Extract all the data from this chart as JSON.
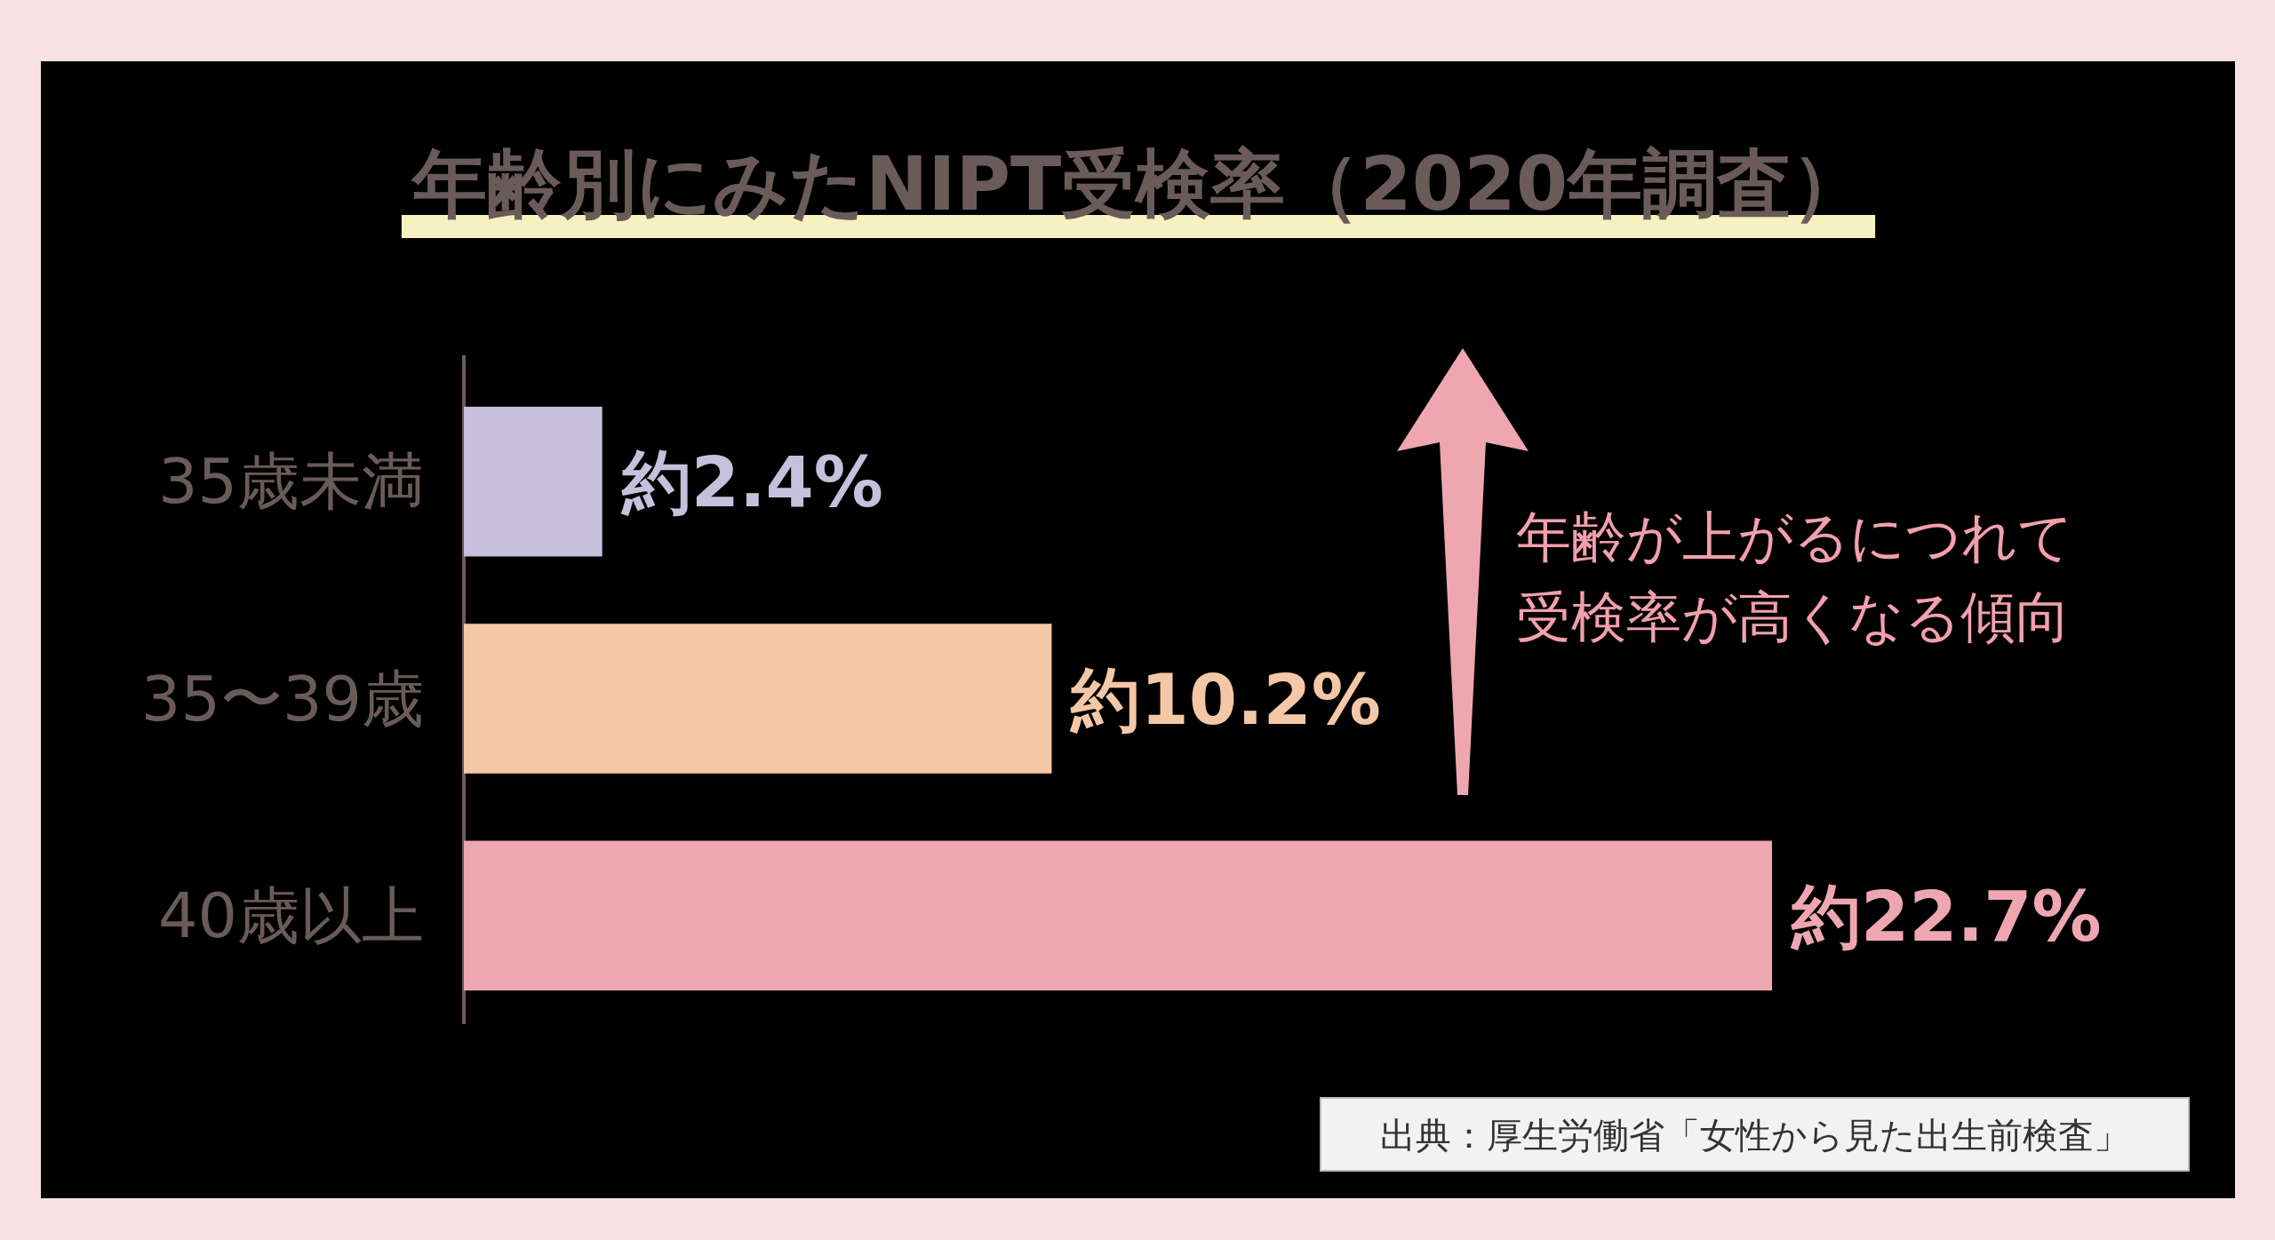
{
  "chart_data": {
    "type": "bar",
    "orientation": "horizontal",
    "title": "年齢別にみたNIPT受検率（2020年調査）",
    "categories": [
      "35歳未満",
      "35〜39歳",
      "40歳以上"
    ],
    "values": [
      2.4,
      10.2,
      22.7
    ],
    "colors": [
      "#c6c0dd",
      "#f4c8a7",
      "#eea7b0"
    ],
    "value_labels": [
      "約2.4%",
      "約10.2%",
      "約22.7%"
    ],
    "annotations": [
      "年齢が上がるにつれて",
      "受検率が高くなる傾向",
      "出典：厚生労働省「女性から見た出生前検査」"
    ]
  }
}
